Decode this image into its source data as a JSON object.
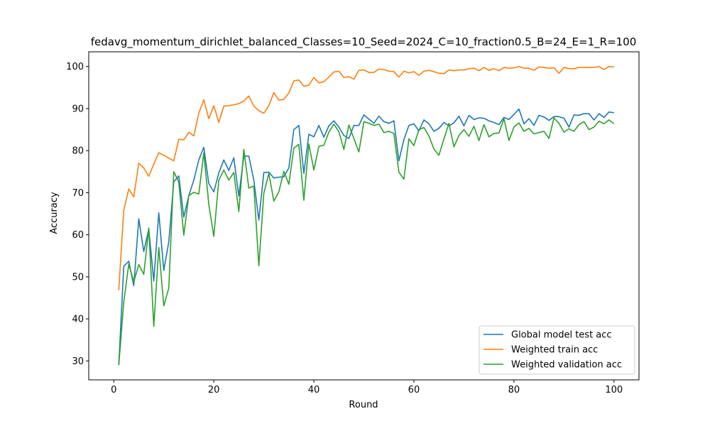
{
  "chart_data": {
    "type": "line",
    "title": "fedavg_momentum_dirichlet_balanced_Classes=10_Seed=2024_C=10_fraction0.5_B=24_E=1_R=100",
    "xlabel": "Round",
    "ylabel": "Accuracy",
    "xlim": [
      -5,
      105
    ],
    "ylim": [
      25.5,
      103.5
    ],
    "xticks": [
      0,
      20,
      40,
      60,
      80,
      100
    ],
    "yticks": [
      30,
      40,
      50,
      60,
      70,
      80,
      90,
      100
    ],
    "grid": false,
    "legend_position": "bottom-right",
    "x": [
      1,
      2,
      3,
      4,
      5,
      6,
      7,
      8,
      9,
      10,
      11,
      12,
      13,
      14,
      15,
      16,
      17,
      18,
      19,
      20,
      21,
      22,
      23,
      24,
      25,
      26,
      27,
      28,
      29,
      30,
      31,
      32,
      33,
      34,
      35,
      36,
      37,
      38,
      39,
      40,
      41,
      42,
      43,
      44,
      45,
      46,
      47,
      48,
      49,
      50,
      51,
      52,
      53,
      54,
      55,
      56,
      57,
      58,
      59,
      60,
      61,
      62,
      63,
      64,
      65,
      66,
      67,
      68,
      69,
      70,
      71,
      72,
      73,
      74,
      75,
      76,
      77,
      78,
      79,
      80,
      81,
      82,
      83,
      84,
      85,
      86,
      87,
      88,
      89,
      90,
      91,
      92,
      93,
      94,
      95,
      96,
      97,
      98,
      99,
      100
    ],
    "series": [
      {
        "name": "Global model test acc",
        "color": "#1f77b4",
        "values": [
          29.0,
          52.5,
          53.7,
          47.9,
          63.8,
          56.0,
          61.4,
          49.0,
          65.2,
          51.5,
          58.3,
          72.6,
          74.0,
          64.2,
          69.3,
          73.0,
          77.8,
          80.8,
          72.2,
          70.2,
          74.7,
          77.8,
          75.3,
          78.3,
          69.2,
          78.7,
          78.7,
          73.0,
          63.5,
          74.8,
          74.9,
          73.5,
          73.7,
          73.8,
          75.9,
          85.0,
          86.0,
          74.6,
          83.9,
          83.3,
          86.0,
          83.2,
          85.9,
          87.1,
          85.6,
          83.6,
          82.9,
          86.0,
          86.0,
          88.5,
          87.5,
          86.5,
          88.2,
          86.9,
          86.5,
          87.1,
          77.6,
          82.6,
          86.0,
          86.4,
          84.7,
          87.3,
          86.4,
          84.6,
          85.3,
          86.7,
          85.9,
          86.6,
          88.2,
          85.9,
          88.4,
          87.4,
          87.8,
          87.7,
          87.1,
          86.7,
          86.2,
          87.9,
          87.4,
          88.6,
          89.9,
          86.4,
          87.6,
          86.0,
          88.4,
          88.0,
          87.2,
          88.1,
          88.1,
          87.7,
          85.6,
          88.5,
          88.4,
          88.8,
          88.8,
          87.3,
          88.8,
          87.9,
          89.2,
          89.0
        ]
      },
      {
        "name": "Weighted train acc",
        "color": "#ff7f0e",
        "values": [
          46.8,
          65.8,
          70.9,
          69.0,
          77.0,
          75.9,
          73.9,
          76.8,
          79.5,
          78.9,
          78.2,
          77.6,
          82.7,
          82.6,
          84.4,
          83.5,
          88.9,
          92.1,
          87.6,
          90.7,
          86.7,
          90.6,
          90.7,
          90.9,
          91.2,
          91.8,
          93.0,
          90.6,
          89.5,
          88.9,
          90.7,
          93.8,
          92.0,
          92.2,
          93.7,
          96.6,
          96.8,
          95.3,
          95.6,
          97.4,
          96.1,
          96.4,
          97.5,
          98.7,
          98.9,
          97.4,
          97.6,
          97.0,
          99.1,
          99.2,
          98.6,
          98.6,
          99.4,
          99.3,
          98.9,
          98.8,
          97.5,
          98.9,
          98.5,
          98.8,
          97.9,
          98.9,
          99.1,
          98.8,
          98.4,
          98.3,
          99.2,
          99.0,
          99.2,
          99.2,
          99.5,
          99.6,
          99.0,
          99.8,
          99.1,
          99.5,
          99.0,
          99.8,
          99.6,
          99.7,
          100.0,
          99.6,
          99.6,
          99.1,
          99.9,
          99.8,
          99.6,
          99.7,
          98.4,
          99.8,
          99.5,
          99.5,
          99.8,
          99.8,
          99.8,
          99.8,
          100.0,
          99.3,
          100.0,
          99.9
        ]
      },
      {
        "name": "Weighted validation acc",
        "color": "#2ca02c",
        "values": [
          29.0,
          44.0,
          53.0,
          48.8,
          52.9,
          50.6,
          61.6,
          38.2,
          57.0,
          43.1,
          47.3,
          75.0,
          72.5,
          59.9,
          69.3,
          70.1,
          69.7,
          79.5,
          67.2,
          59.6,
          73.0,
          75.4,
          73.0,
          74.8,
          65.5,
          80.3,
          71.1,
          71.6,
          52.6,
          69.9,
          74.6,
          68.0,
          70.2,
          75.1,
          72.0,
          80.6,
          81.5,
          68.2,
          81.6,
          75.4,
          81.0,
          81.3,
          84.4,
          86.3,
          84.5,
          80.3,
          86.1,
          82.9,
          79.7,
          86.9,
          86.5,
          86.0,
          86.3,
          84.3,
          84.6,
          84.1,
          74.9,
          73.2,
          82.8,
          81.2,
          85.0,
          85.5,
          83.5,
          80.4,
          78.9,
          82.8,
          86.5,
          80.9,
          83.6,
          85.0,
          83.4,
          85.8,
          82.4,
          86.2,
          83.3,
          84.1,
          84.2,
          87.6,
          82.4,
          85.6,
          86.6,
          84.6,
          85.3,
          84.0,
          84.3,
          84.6,
          82.9,
          87.8,
          86.5,
          84.4,
          85.2,
          84.6,
          86.2,
          86.9,
          85.0,
          85.6,
          87.0,
          86.4,
          87.3,
          86.4
        ]
      }
    ]
  }
}
